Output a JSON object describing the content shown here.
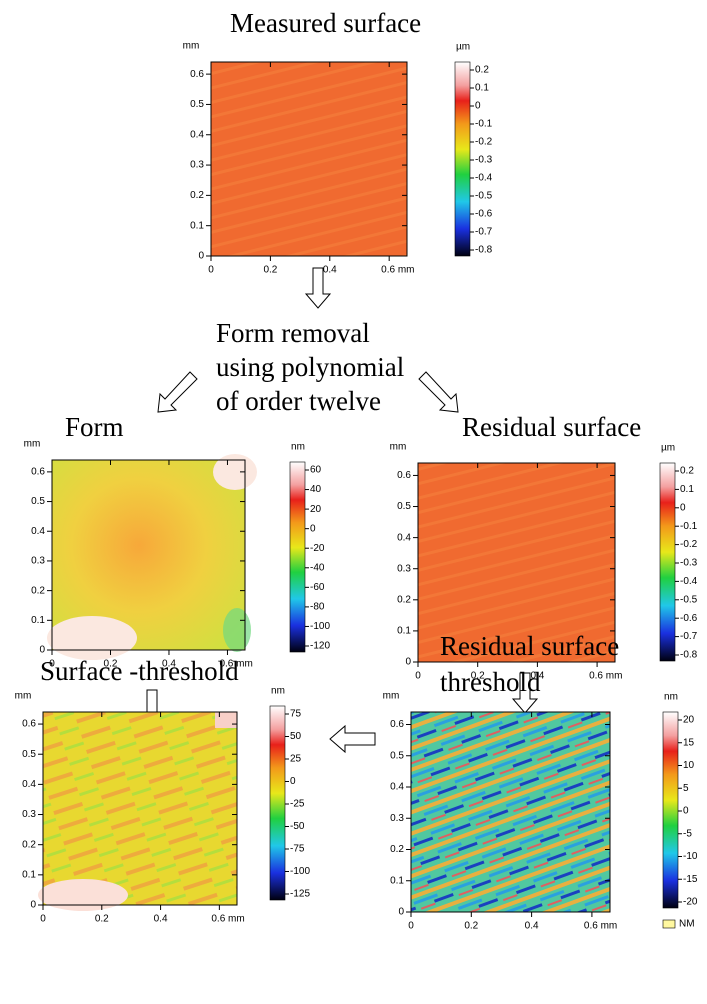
{
  "flow": {
    "form_removal": [
      "Form removal",
      "using polynomial",
      "of order twelve"
    ]
  },
  "panels": [
    {
      "title": [
        "Measured surface"
      ],
      "axis_unit": "mm",
      "xticks": [
        "0",
        "0.2",
        "0.4",
        "0.6 mm"
      ],
      "yticks": [
        "0",
        "0.1",
        "0.2",
        "0.3",
        "0.4",
        "0.5",
        "0.6"
      ],
      "colorbar": {
        "unit": "µm",
        "ticks": [
          "0.2",
          "0.1",
          "0",
          "-0.1",
          "-0.2",
          "-0.3",
          "-0.4",
          "-0.5",
          "-0.6",
          "-0.7",
          "-0.8"
        ]
      }
    },
    {
      "title": [
        "Form"
      ],
      "axis_unit": "mm",
      "xticks": [
        "0",
        "0.2",
        "0.4",
        "0.6 mm"
      ],
      "yticks": [
        "0",
        "0.1",
        "0.2",
        "0.3",
        "0.4",
        "0.5",
        "0.6"
      ],
      "colorbar": {
        "unit": "nm",
        "ticks": [
          "60",
          "40",
          "20",
          "0",
          "-20",
          "-40",
          "-60",
          "-80",
          "-100",
          "-120"
        ]
      }
    },
    {
      "title": [
        "Residual surface"
      ],
      "axis_unit": "mm",
      "xticks": [
        "0",
        "0.2",
        "0.4",
        "0.6 mm"
      ],
      "yticks": [
        "0",
        "0.1",
        "0.2",
        "0.3",
        "0.4",
        "0.5",
        "0.6"
      ],
      "colorbar": {
        "unit": "µm",
        "ticks": [
          "0.2",
          "0.1",
          "0",
          "-0.1",
          "-0.2",
          "-0.3",
          "-0.4",
          "-0.5",
          "-0.6",
          "-0.7",
          "-0.8"
        ]
      }
    },
    {
      "title": [
        "Surface -threshold"
      ],
      "axis_unit": "mm",
      "xticks": [
        "0",
        "0.2",
        "0.4",
        "0.6 mm"
      ],
      "yticks": [
        "0",
        "0.1",
        "0.2",
        "0.3",
        "0.4",
        "0.5",
        "0.6"
      ],
      "colorbar": {
        "unit": "nm",
        "ticks": [
          "75",
          "50",
          "25",
          "0",
          "-25",
          "-50",
          "-75",
          "-100",
          "-125"
        ]
      }
    },
    {
      "title": [
        "Residual surface",
        "threshold"
      ],
      "axis_unit": "mm",
      "xticks": [
        "0",
        "0.2",
        "0.4",
        "0.6 mm"
      ],
      "yticks": [
        "0",
        "0.1",
        "0.2",
        "0.3",
        "0.4",
        "0.5",
        "0.6"
      ],
      "colorbar": {
        "unit": "nm",
        "ticks": [
          "20",
          "15",
          "10",
          "5",
          "0",
          "-5",
          "-10",
          "-15",
          "-20"
        ]
      },
      "legend": "NM"
    }
  ]
}
